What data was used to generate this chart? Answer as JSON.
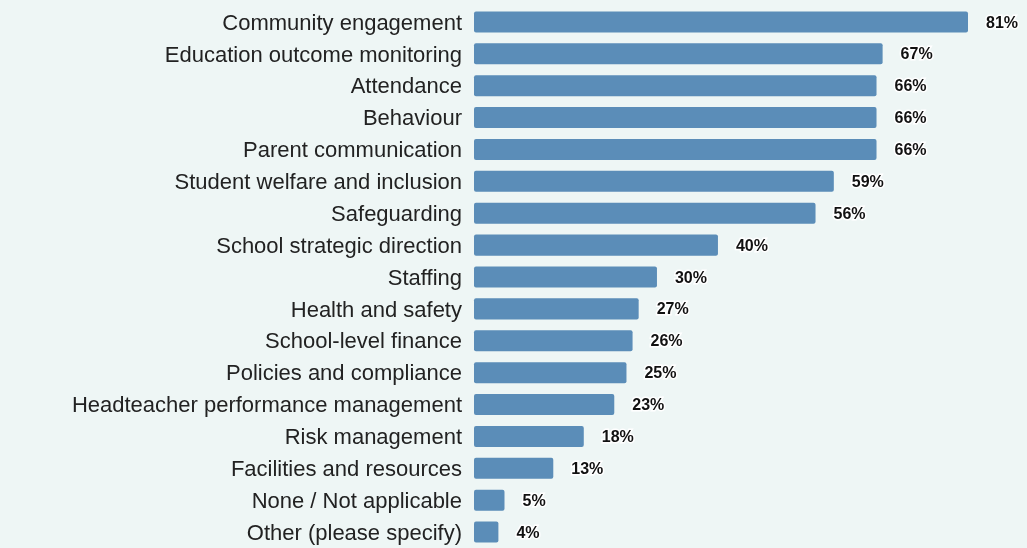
{
  "chart_data": {
    "type": "bar",
    "orientation": "horizontal",
    "categories": [
      "Community engagement",
      "Education outcome monitoring",
      "Attendance",
      "Behaviour",
      "Parent communication",
      "Student welfare and inclusion",
      "Safeguarding",
      "School strategic direction",
      "Staffing",
      "Health and safety",
      "School-level finance",
      "Policies and compliance",
      "Headteacher performance management",
      "Risk management",
      "Facilities and resources",
      "None / Not applicable",
      "Other (please specify)"
    ],
    "values": [
      81,
      67,
      66,
      66,
      66,
      59,
      56,
      40,
      30,
      27,
      26,
      25,
      23,
      18,
      13,
      5,
      4
    ],
    "value_labels": [
      "81%",
      "67%",
      "66%",
      "66%",
      "66%",
      "59%",
      "56%",
      "40%",
      "30%",
      "27%",
      "26%",
      "25%",
      "23%",
      "18%",
      "13%",
      "5%",
      "4%"
    ],
    "color": "#5b8db8",
    "tick_labels": "y"
  }
}
